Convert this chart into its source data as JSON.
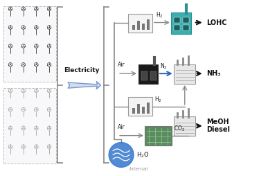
{
  "bg_color": "#ffffff",
  "text_color": "#000000",
  "electricity_label": "Electricity",
  "products": [
    "LOHC",
    "NH₃",
    "MeOH\nDiesel"
  ],
  "h2_label": "H₂",
  "n2_label": "N₂",
  "co2_label": "CO₂",
  "h2o_label": "H₂O",
  "air_label": "Air",
  "internal_label": "Internal",
  "gray": "#888888",
  "dark_gray": "#555555",
  "blue": "#3366bb",
  "black": "#111111",
  "teal": "#2a9090",
  "teal_dark": "#1a5f5f",
  "turbine_dark": "#222222",
  "turbine_light": "#999999",
  "box_bg": "#f4f4f4",
  "factory_dark": "#1a1a1a",
  "plant_bg": "#e8e8e8",
  "dac_green": "#5a8a60",
  "h2o_blue": "#3377cc"
}
